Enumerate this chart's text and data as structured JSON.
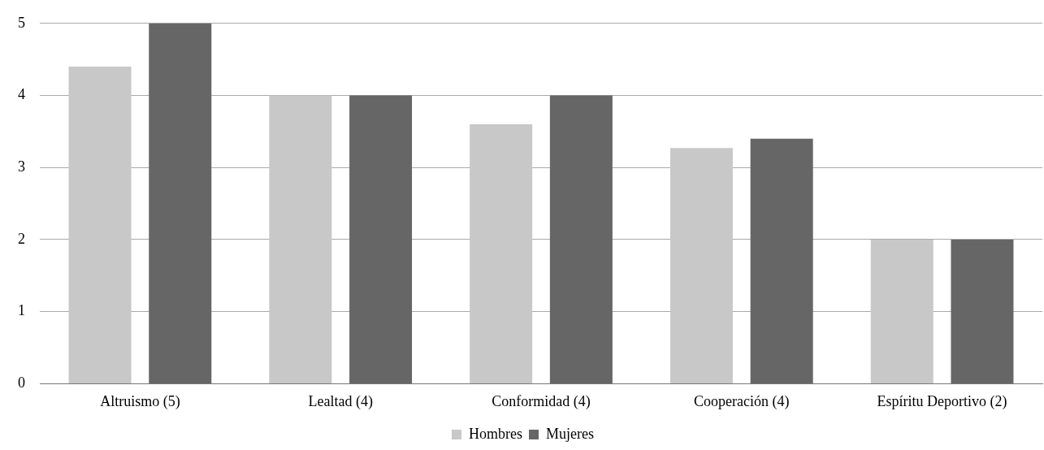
{
  "chart_data": {
    "type": "bar",
    "categories": [
      "Altruismo (5)",
      "Lealtad (4)",
      "Conformidad (4)",
      "Cooperación (4)",
      "Espíritu Deportivo (2)"
    ],
    "series": [
      {
        "name": "Hombres",
        "color": "#c8c8c8",
        "values": [
          4.4,
          4,
          3.6,
          3.27,
          2
        ]
      },
      {
        "name": "Mujeres",
        "color": "#666666",
        "values": [
          5,
          4,
          4,
          3.4,
          2
        ]
      }
    ],
    "ylim": [
      0,
      5
    ],
    "yticks": [
      0,
      1,
      2,
      3,
      4,
      5
    ],
    "grid": "y",
    "legend": "bottom"
  }
}
